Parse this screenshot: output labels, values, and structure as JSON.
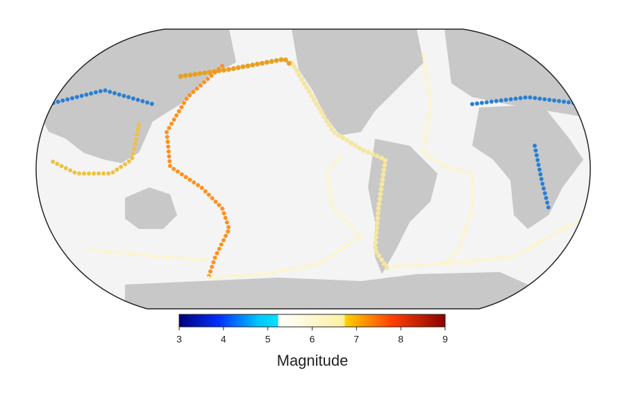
{
  "colorbar": {
    "label": "Magnitude",
    "lim": [
      3,
      9
    ],
    "ticks": [
      3,
      4,
      5,
      6,
      7,
      8,
      9
    ]
  }
}
